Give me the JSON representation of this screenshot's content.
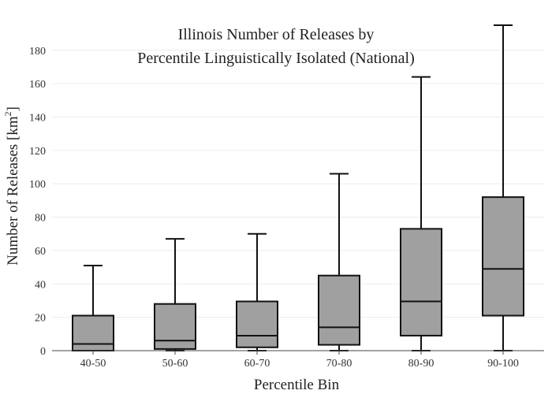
{
  "chart_data": {
    "type": "box",
    "title_lines": [
      "Illinois Number of Releases by",
      "Percentile Linguistically Isolated (National)"
    ],
    "xlabel": "Percentile Bin",
    "ylabel_main": "Number of Releases  [km",
    "ylabel_sup": "2",
    "ylabel_end": "]",
    "ylim": [
      0,
      195
    ],
    "yticks": [
      0,
      20,
      40,
      60,
      80,
      100,
      120,
      140,
      160,
      180
    ],
    "ytick_labels": [
      "0",
      "20",
      "40",
      "60",
      "80",
      "100",
      "120",
      "140",
      "160",
      "180"
    ],
    "grid": true,
    "categories": [
      "40-50",
      "50-60",
      "60-70",
      "70-80",
      "80-90",
      "90-100"
    ],
    "boxes": [
      {
        "min": 0,
        "q1": 0,
        "median": 4,
        "q3": 21,
        "max": 51
      },
      {
        "min": 0,
        "q1": 1,
        "median": 6,
        "q3": 28,
        "max": 67
      },
      {
        "min": 0,
        "q1": 2,
        "median": 9,
        "q3": 29.5,
        "max": 70
      },
      {
        "min": 0,
        "q1": 3.5,
        "median": 14,
        "q3": 45,
        "max": 106
      },
      {
        "min": 0,
        "q1": 9,
        "median": 29.5,
        "q3": 73,
        "max": 164
      },
      {
        "min": 0,
        "q1": 21,
        "median": 49,
        "q3": 92,
        "max": 195
      }
    ],
    "box_fill": "#a0a0a0",
    "line_color": "#111111"
  }
}
